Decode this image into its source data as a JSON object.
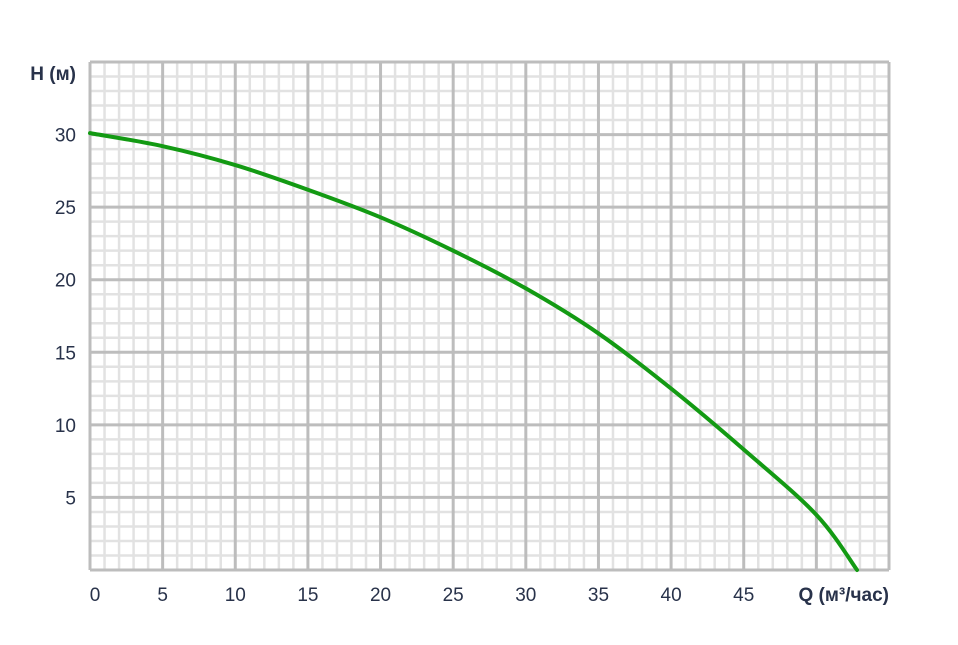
{
  "chart_data": {
    "type": "line",
    "title": "",
    "xlabel": "Q (м³/час)",
    "ylabel": "H (м)",
    "xlim": [
      0,
      55
    ],
    "ylim": [
      0,
      35
    ],
    "xticks": [
      "0",
      "5",
      "10",
      "15",
      "20",
      "25",
      "30",
      "35",
      "40",
      "45"
    ],
    "yticks": [
      "5",
      "10",
      "15",
      "20",
      "25",
      "30"
    ],
    "grid": true,
    "minor_grid_divisions": 5,
    "series": [
      {
        "color": "#139a13",
        "x": [
          0,
          5,
          10,
          15,
          20,
          25,
          30,
          35,
          40,
          45,
          50,
          52.8
        ],
        "y": [
          30.1,
          29.2,
          27.9,
          26.2,
          24.3,
          22.0,
          19.4,
          16.3,
          12.5,
          8.3,
          3.8,
          0
        ]
      }
    ],
    "colors": {
      "major_grid": "#bdbdbd",
      "minor_grid": "#e2e2e2",
      "text": "#28324a"
    }
  }
}
